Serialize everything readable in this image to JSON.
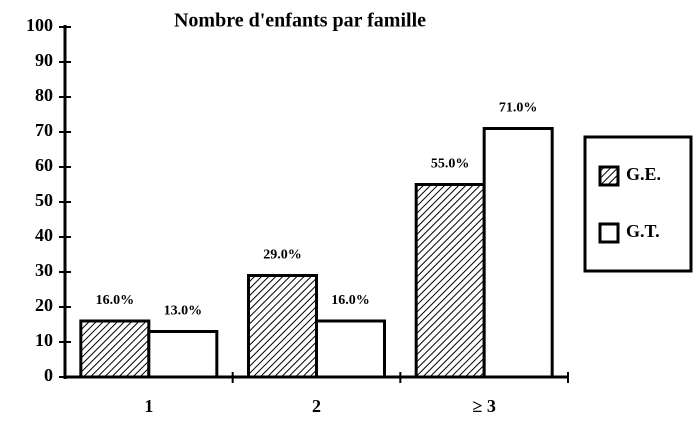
{
  "chart_data": {
    "type": "bar",
    "title": "Nombre d'enfants par famille",
    "categories": [
      "1",
      "2",
      "≥ 3"
    ],
    "series": [
      {
        "name": "G.E.",
        "color": "#000000",
        "fill": "hatch",
        "values": [
          16,
          29,
          55
        ],
        "value_labels": [
          "16.0%",
          "29.0%",
          "55.0%"
        ]
      },
      {
        "name": "G.T.",
        "color": "#000000",
        "fill": "white",
        "values": [
          13,
          16,
          71
        ],
        "value_labels": [
          "13.0%",
          "16.0%",
          "71.0%"
        ]
      }
    ],
    "ylim": [
      0,
      100
    ],
    "yticks": [
      0,
      10,
      20,
      30,
      40,
      50,
      60,
      70,
      80,
      90,
      100
    ],
    "legend": "right"
  }
}
